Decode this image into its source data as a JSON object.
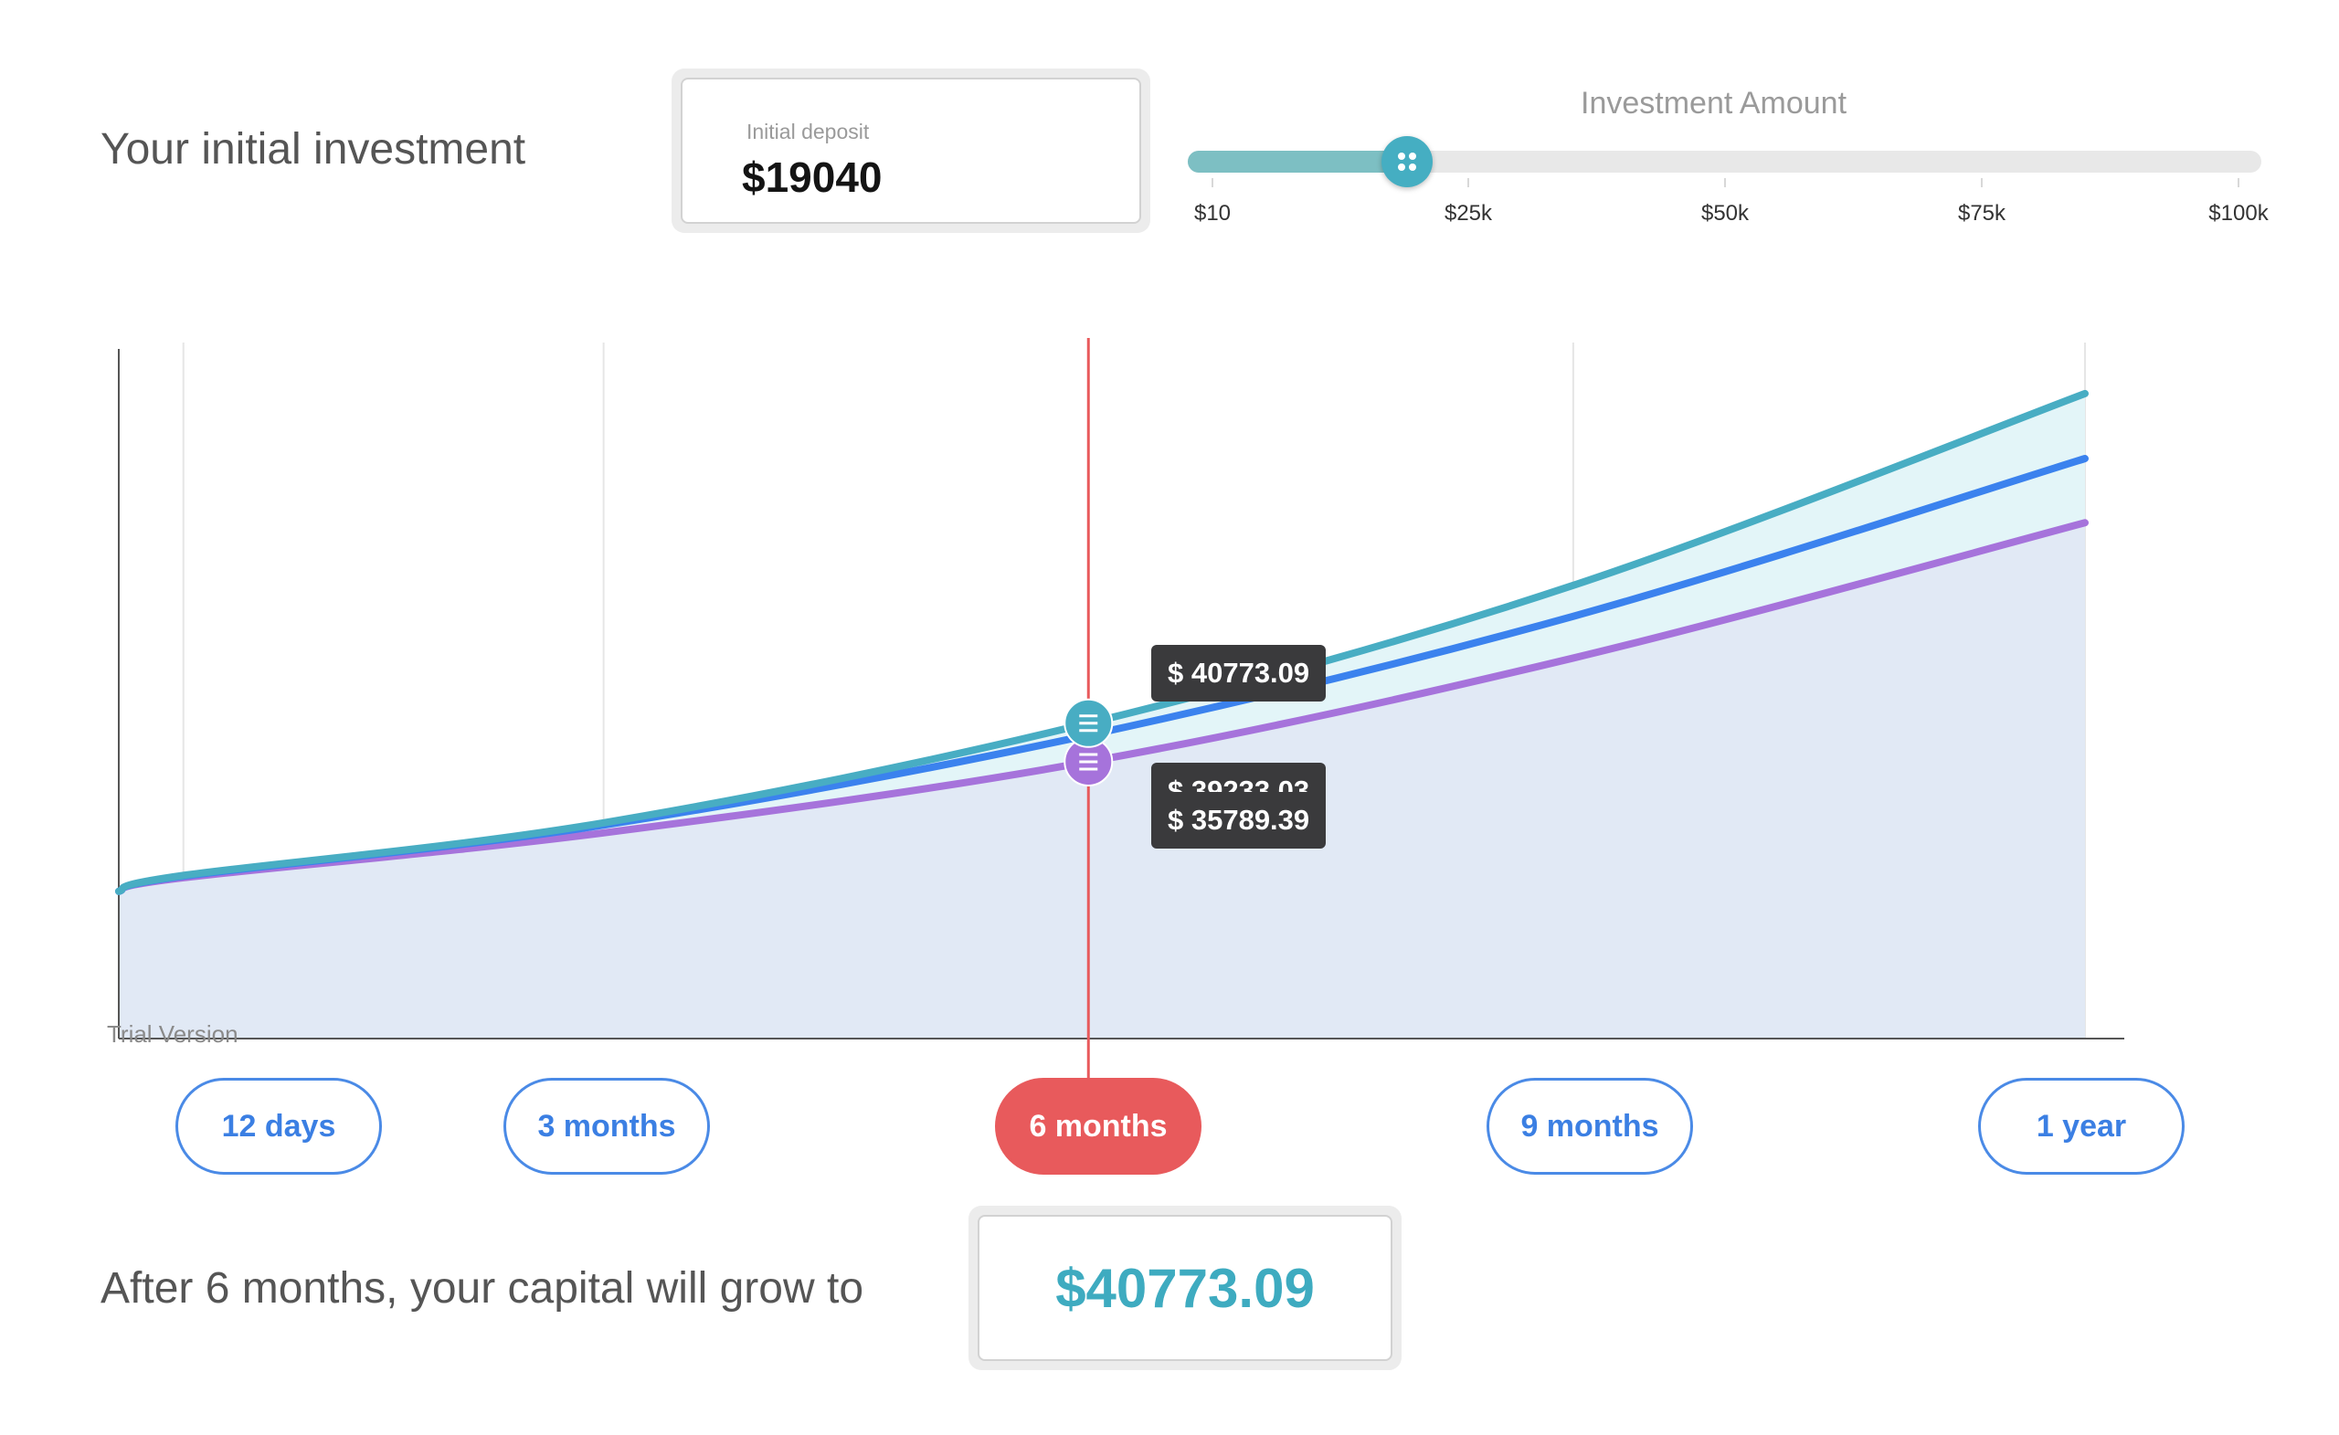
{
  "header": {
    "intro_label": "Your initial investment",
    "deposit_label": "Initial deposit",
    "deposit_value": "$19040"
  },
  "slider": {
    "title": "Investment Amount",
    "min": 10,
    "max": 100000,
    "value": 19040,
    "ticks": [
      "$10",
      "$25k",
      "$50k",
      "$75k",
      "$100k"
    ],
    "fill_color": "#7dbfc3",
    "thumb_color": "#45aec2",
    "thumb_icon": "drag-dots-icon"
  },
  "chart_data": {
    "type": "area",
    "x_periods": [
      "start",
      "12 days",
      "3 months",
      "6 months",
      "9 months",
      "1 year"
    ],
    "x_days": [
      0,
      12,
      90,
      180,
      270,
      365
    ],
    "series": [
      {
        "color": "#48adc3",
        "values": [
          19040,
          21100,
          27900,
          40773.09,
          58600,
          83400
        ]
      },
      {
        "color": "#3b82ee",
        "values": [
          19040,
          21000,
          27600,
          39233.03,
          54600,
          75000
        ]
      },
      {
        "color": "#a673db",
        "values": [
          19040,
          20800,
          26600,
          35789.39,
          49200,
          66700
        ]
      }
    ],
    "ylim": [
      0,
      90000
    ],
    "selected_period": "6 months",
    "marker_color": "#e85a5c",
    "tooltips": [
      "$ 40773.09",
      "$ 39233.03",
      "$ 35789.39"
    ],
    "watermark": "Trial Version"
  },
  "periods": {
    "labels": [
      "12 days",
      "3 months",
      "6 months",
      "9 months",
      "1 year"
    ],
    "active_index": 2
  },
  "result": {
    "label": "After 6 months, your capital will grow to",
    "value": "$40773.09"
  }
}
